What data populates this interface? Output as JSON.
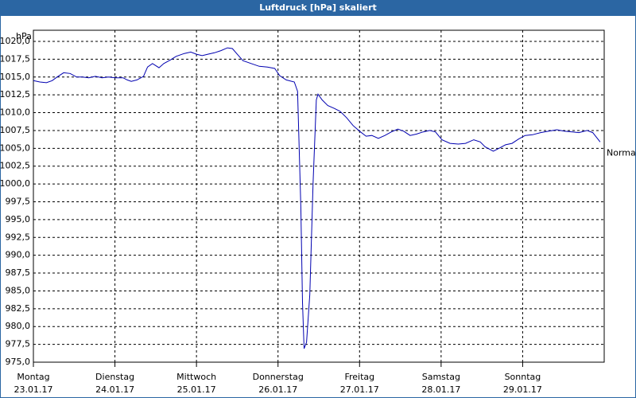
{
  "chart_data": {
    "type": "line",
    "title": "Luftdruck [hPa] skaliert",
    "y_label": "hPa",
    "xlim": [
      0,
      7
    ],
    "xticks": [
      {
        "value": 0,
        "label": [
          "Montag",
          "23.01.17"
        ]
      },
      {
        "value": 1,
        "label": [
          "Dienstag",
          "24.01.17"
        ]
      },
      {
        "value": 2,
        "label": [
          "Mittwoch",
          "25.01.17"
        ]
      },
      {
        "value": 3,
        "label": [
          "Donnerstag",
          "26.01.17"
        ]
      },
      {
        "value": 4,
        "label": [
          "Freitag",
          "27.01.17"
        ]
      },
      {
        "value": 5,
        "label": [
          "Samstag",
          "28.01.17"
        ]
      },
      {
        "value": 6,
        "label": [
          "Sonntag",
          "29.01.17"
        ]
      }
    ],
    "ylim": [
      975,
      1020
    ],
    "yticks": [
      {
        "value": 975,
        "label": "975,0"
      },
      {
        "value": 977.5,
        "label": "977,5"
      },
      {
        "value": 980,
        "label": "980,0"
      },
      {
        "value": 982.5,
        "label": "982,5"
      },
      {
        "value": 985,
        "label": "985,0"
      },
      {
        "value": 987.5,
        "label": "987,5"
      },
      {
        "value": 990,
        "label": "990,0"
      },
      {
        "value": 992.5,
        "label": "992,5"
      },
      {
        "value": 995,
        "label": "995,0"
      },
      {
        "value": 997.5,
        "label": "997,5"
      },
      {
        "value": 1000,
        "label": "1000,0"
      },
      {
        "value": 1002.5,
        "label": "1002,5"
      },
      {
        "value": 1005,
        "label": "1005,0"
      },
      {
        "value": 1007.5,
        "label": "1007,5"
      },
      {
        "value": 1010,
        "label": "1010,0"
      },
      {
        "value": 1012.5,
        "label": "1012,5"
      },
      {
        "value": 1015,
        "label": "1015,0"
      },
      {
        "value": 1017.5,
        "label": "1017,5"
      },
      {
        "value": 1020,
        "label": "1020,0"
      }
    ],
    "grid": true,
    "series": [
      {
        "name": "Normal",
        "color": "#0000b0",
        "x": [
          0,
          0.08,
          0.16,
          0.23,
          0.29,
          0.37,
          0.45,
          0.53,
          0.6,
          0.68,
          0.76,
          0.84,
          0.92,
          1.0,
          1.1,
          1.15,
          1.2,
          1.27,
          1.35,
          1.4,
          1.46,
          1.54,
          1.6,
          1.68,
          1.75,
          1.85,
          1.93,
          2.0,
          2.07,
          2.14,
          2.22,
          2.3,
          2.38,
          2.44,
          2.5,
          2.57,
          2.67,
          2.77,
          2.87,
          2.96,
          3.02,
          3.1,
          3.2,
          3.24,
          3.28,
          3.3,
          3.32,
          3.35,
          3.39,
          3.43,
          3.47,
          3.49,
          3.54,
          3.61,
          3.69,
          3.76,
          3.84,
          3.92,
          4.0,
          4.08,
          4.15,
          4.23,
          4.31,
          4.39,
          4.47,
          4.54,
          4.62,
          4.7,
          4.78,
          4.86,
          4.93,
          5.01,
          5.11,
          5.21,
          5.3,
          5.4,
          5.48,
          5.54,
          5.64,
          5.71,
          5.79,
          5.87,
          5.95,
          6.03,
          6.12,
          6.22,
          6.32,
          6.42,
          6.51,
          6.61,
          6.69,
          6.79,
          6.86,
          6.95
        ],
        "values": [
          1014.5,
          1014.3,
          1014.2,
          1014.5,
          1015.0,
          1015.6,
          1015.5,
          1015.0,
          1015.0,
          1014.9,
          1015.1,
          1014.9,
          1015.0,
          1014.9,
          1014.9,
          1014.6,
          1014.4,
          1014.6,
          1015.1,
          1016.4,
          1016.9,
          1016.3,
          1016.9,
          1017.4,
          1017.9,
          1018.3,
          1018.5,
          1018.2,
          1018.0,
          1018.2,
          1018.4,
          1018.7,
          1019.1,
          1019.0,
          1018.2,
          1017.3,
          1016.9,
          1016.5,
          1016.4,
          1016.2,
          1015.2,
          1014.6,
          1014.3,
          1013.0,
          996.8,
          983.4,
          976.9,
          977.8,
          984.5,
          1000.1,
          1011.8,
          1012.6,
          1011.8,
          1011.0,
          1010.6,
          1010.2,
          1009.3,
          1008.2,
          1007.4,
          1006.7,
          1006.8,
          1006.4,
          1006.8,
          1007.3,
          1007.7,
          1007.4,
          1006.8,
          1007.0,
          1007.3,
          1007.5,
          1007.3,
          1006.2,
          1005.7,
          1005.6,
          1005.7,
          1006.2,
          1005.9,
          1005.2,
          1004.6,
          1005.0,
          1005.5,
          1005.7,
          1006.3,
          1006.8,
          1006.9,
          1007.2,
          1007.4,
          1007.6,
          1007.4,
          1007.3,
          1007.2,
          1007.5,
          1007.2,
          1005.9
        ]
      }
    ]
  }
}
